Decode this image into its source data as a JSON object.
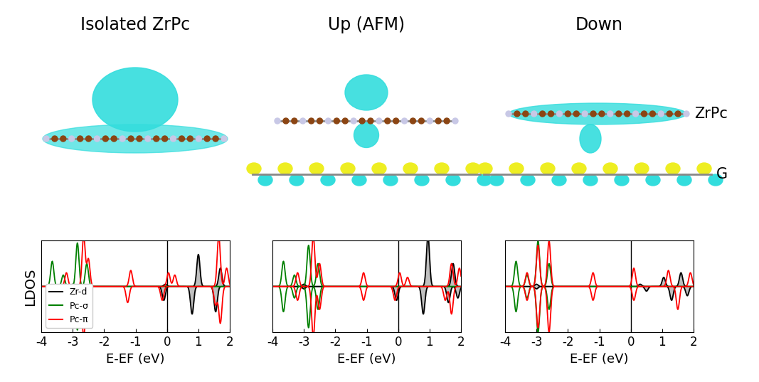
{
  "chart_data": [
    {
      "type": "line",
      "title": "Isolated ZrPc",
      "x_label": "E-EF (eV)",
      "y_label": "LDOS",
      "xlim": [
        -4,
        2
      ],
      "xticks": [
        -4,
        -3,
        -2,
        -1,
        0,
        1,
        2
      ],
      "ylim": [
        -1,
        1
      ],
      "yticks": [],
      "tick_labels": "x",
      "legend": "lower left",
      "series": [
        {
          "name": "Zr-d",
          "color": "black",
          "up": {
            "x": [
              -3.0,
              -0.05,
              1.0,
              1.7
            ],
            "values": [
              0.05,
              0.05,
              0.7,
              0.4
            ]
          },
          "down": {
            "x": [
              -3.0,
              -0.1,
              0.8,
              1.55
            ],
            "values": [
              -0.05,
              -0.3,
              -0.6,
              -0.55
            ]
          }
        },
        {
          "name": "Pc-σ",
          "color": "green",
          "up": {
            "x": [
              -3.65,
              -3.3,
              -2.85,
              -2.55
            ],
            "values": [
              0.55,
              0.25,
              0.95,
              0.5
            ]
          },
          "down": {
            "x": [
              -3.65,
              -3.3,
              -2.85,
              -2.55
            ],
            "values": [
              -0.55,
              -0.25,
              -0.95,
              -0.5
            ]
          }
        },
        {
          "name": "Pc-π",
          "color": "red",
          "up": {
            "x": [
              -3.2,
              -2.65,
              -2.5,
              -1.15,
              0.05,
              0.25,
              1.65,
              1.9
            ],
            "values": [
              0.3,
              1.1,
              0.6,
              0.35,
              0.3,
              0.25,
              1.1,
              0.4
            ]
          },
          "down": {
            "x": [
              -3.3,
              -2.65,
              -2.5,
              -1.25,
              -0.15,
              1.55,
              1.7
            ],
            "values": [
              -0.3,
              -1.1,
              -0.6,
              -0.35,
              -0.3,
              -0.4,
              -0.8
            ]
          }
        }
      ]
    },
    {
      "type": "line",
      "title": "Up (AFM)",
      "x_label": "E-EF (eV)",
      "xlim": [
        -4,
        2
      ],
      "xticks": [
        -4,
        -3,
        -2,
        -1,
        0,
        1,
        2
      ],
      "ylim": [
        -1,
        1
      ],
      "yticks": [],
      "tick_labels": "x",
      "series": [
        {
          "name": "Zr-d",
          "color": "black",
          "up": {
            "x": [
              -3.0,
              0.95,
              1.75
            ],
            "values": [
              0.05,
              1.1,
              0.5
            ]
          },
          "down": {
            "x": [
              -3.0,
              -0.05,
              0.8,
              1.6,
              1.9
            ],
            "values": [
              -0.05,
              -0.3,
              -0.6,
              -0.35,
              -0.25
            ]
          }
        },
        {
          "name": "Pc-σ",
          "color": "green",
          "up": {
            "x": [
              -3.65,
              -3.3,
              -2.85,
              -2.55
            ],
            "values": [
              0.55,
              0.25,
              0.9,
              0.5
            ]
          },
          "down": {
            "x": [
              -3.65,
              -3.3,
              -2.85,
              -2.55
            ],
            "values": [
              -0.55,
              -0.25,
              -0.9,
              -0.5
            ]
          }
        },
        {
          "name": "Pc-π",
          "color": "red",
          "up": {
            "x": [
              -3.2,
              -2.7,
              -2.5,
              -1.1,
              0.05,
              0.3,
              1.7,
              1.95
            ],
            "values": [
              0.3,
              1.1,
              0.5,
              0.3,
              0.3,
              0.2,
              0.5,
              0.4
            ]
          },
          "down": {
            "x": [
              -3.2,
              -2.7,
              -2.5,
              -1.1,
              -0.1,
              1.5,
              1.7
            ],
            "values": [
              -0.3,
              -1.1,
              -0.5,
              -0.3,
              -0.3,
              -0.3,
              -0.6
            ]
          }
        }
      ]
    },
    {
      "type": "line",
      "title": "Down",
      "x_label": "E-EF (eV)",
      "xlim": [
        -4,
        2
      ],
      "xticks": [
        -4,
        -3,
        -2,
        -1,
        0,
        1,
        2
      ],
      "ylim": [
        -1,
        1
      ],
      "yticks": [],
      "tick_labels": "x",
      "series": [
        {
          "name": "Zr-d",
          "color": "black",
          "up": {
            "x": [
              -3.0,
              0.3,
              1.05,
              1.6
            ],
            "values": [
              0.05,
              0.05,
              0.2,
              0.3
            ]
          },
          "down": {
            "x": [
              -3.0,
              0.5,
              1.3,
              1.8
            ],
            "values": [
              -0.05,
              -0.1,
              -0.3,
              -0.2
            ]
          }
        },
        {
          "name": "Pc-σ",
          "color": "green",
          "up": {
            "x": [
              -3.65,
              -3.3,
              -2.95,
              -2.6
            ],
            "values": [
              0.55,
              0.25,
              1.0,
              0.5
            ]
          },
          "down": {
            "x": [
              -3.65,
              -3.3,
              -2.95,
              -2.6
            ],
            "values": [
              -0.55,
              -0.25,
              -1.0,
              -0.5
            ]
          }
        },
        {
          "name": "Pc-π",
          "color": "red",
          "up": {
            "x": [
              -3.3,
              -2.95,
              -2.6,
              -1.2,
              0.1,
              1.2,
              1.9
            ],
            "values": [
              0.3,
              0.9,
              1.0,
              0.3,
              0.4,
              0.35,
              0.3
            ]
          },
          "down": {
            "x": [
              -3.3,
              -2.95,
              -2.6,
              -1.2,
              0.1,
              1.5
            ],
            "values": [
              -0.3,
              -0.9,
              -1.0,
              -0.3,
              -0.3,
              -0.5
            ]
          }
        }
      ]
    }
  ],
  "layer_labels": [
    "ZrPc",
    "G"
  ]
}
